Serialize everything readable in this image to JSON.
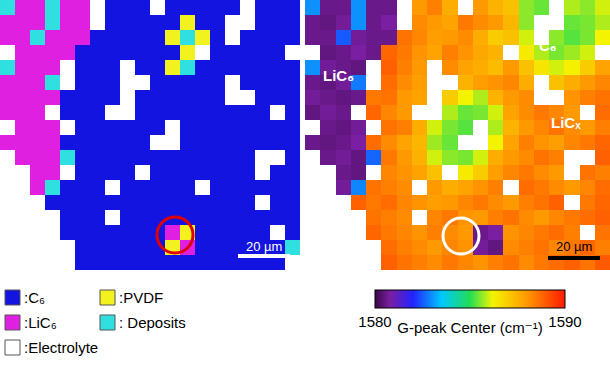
{
  "chart_data": [
    {
      "type": "heatmap",
      "tick_labels": false,
      "scale_bar": "20 µm",
      "series": [
        {
          "name": ":C₆",
          "color": "#1414e0"
        },
        {
          "name": ":PVDF",
          "color": "#f2f21e"
        },
        {
          "name": ":LiC₆",
          "color": "#e020e0"
        },
        {
          "name": ": Deposits",
          "color": "#30e0e0"
        },
        {
          "name": ":Electrolyte",
          "color": "#ffffff"
        }
      ],
      "cells": [
        [
          3,
          2,
          2,
          3,
          2,
          2,
          4,
          0,
          0,
          0,
          4,
          0,
          0,
          0,
          0,
          0,
          4,
          0,
          0,
          0
        ],
        [
          2,
          2,
          2,
          3,
          2,
          2,
          4,
          0,
          0,
          0,
          0,
          0,
          1,
          0,
          0,
          4,
          4,
          0,
          0,
          0
        ],
        [
          2,
          2,
          3,
          2,
          2,
          2,
          0,
          0,
          0,
          0,
          0,
          1,
          3,
          1,
          0,
          4,
          0,
          0,
          0,
          0
        ],
        [
          4,
          2,
          2,
          2,
          2,
          0,
          0,
          0,
          0,
          0,
          0,
          0,
          1,
          4,
          0,
          0,
          0,
          0,
          0,
          4
        ],
        [
          3,
          2,
          2,
          2,
          4,
          0,
          0,
          0,
          4,
          0,
          0,
          1,
          3,
          0,
          0,
          0,
          0,
          0,
          0,
          0
        ],
        [
          2,
          2,
          2,
          3,
          4,
          0,
          0,
          0,
          4,
          4,
          0,
          0,
          0,
          0,
          0,
          4,
          0,
          0,
          0,
          0
        ],
        [
          2,
          2,
          2,
          2,
          0,
          0,
          0,
          0,
          4,
          0,
          0,
          0,
          0,
          0,
          0,
          4,
          4,
          0,
          0,
          0
        ],
        [
          2,
          2,
          2,
          4,
          0,
          0,
          0,
          4,
          4,
          0,
          0,
          0,
          0,
          0,
          0,
          0,
          0,
          0,
          4,
          0
        ],
        [
          4,
          2,
          2,
          2,
          4,
          0,
          0,
          0,
          0,
          0,
          0,
          4,
          0,
          0,
          0,
          0,
          0,
          0,
          0,
          0
        ],
        [
          2,
          2,
          2,
          2,
          0,
          0,
          0,
          0,
          0,
          0,
          4,
          4,
          0,
          0,
          0,
          0,
          0,
          0,
          0,
          0
        ],
        [
          4,
          2,
          2,
          2,
          3,
          0,
          0,
          0,
          0,
          0,
          0,
          0,
          0,
          0,
          0,
          0,
          0,
          4,
          4,
          0
        ],
        [
          4,
          4,
          2,
          2,
          4,
          0,
          0,
          0,
          0,
          4,
          0,
          0,
          0,
          0,
          0,
          0,
          0,
          4,
          0,
          0
        ],
        [
          4,
          4,
          2,
          3,
          0,
          0,
          0,
          4,
          0,
          0,
          0,
          0,
          0,
          4,
          0,
          0,
          0,
          0,
          0,
          0
        ],
        [
          4,
          4,
          4,
          0,
          0,
          0,
          0,
          0,
          0,
          0,
          0,
          0,
          0,
          0,
          0,
          0,
          0,
          4,
          0,
          0
        ],
        [
          4,
          4,
          4,
          4,
          0,
          0,
          0,
          4,
          0,
          0,
          0,
          0,
          0,
          0,
          0,
          0,
          0,
          0,
          0,
          0
        ],
        [
          4,
          4,
          4,
          4,
          0,
          0,
          0,
          0,
          0,
          0,
          0,
          2,
          1,
          0,
          0,
          0,
          0,
          0,
          4,
          0
        ],
        [
          4,
          4,
          4,
          4,
          4,
          0,
          0,
          0,
          0,
          0,
          0,
          1,
          2,
          0,
          0,
          0,
          0,
          0,
          0,
          3
        ],
        [
          4,
          4,
          4,
          4,
          4,
          0,
          0,
          0,
          0,
          0,
          0,
          0,
          0,
          0,
          0,
          0,
          0,
          0,
          0,
          4
        ]
      ]
    },
    {
      "type": "heatmap",
      "tick_labels": false,
      "scale_bar": "20 µm",
      "annotations": [
        "LiC₆",
        "C₆",
        "LiCₓ"
      ],
      "zlim": [
        1580,
        1590
      ],
      "zticks": [
        1580,
        1590
      ],
      "colorbar_title": "G-peak Center (cm⁻¹)",
      "cells": [
        [
          1583,
          1580.6,
          1580.6,
          1583,
          1580.6,
          1580.6,
          null,
          1588,
          1588.4,
          1587.6,
          null,
          1588,
          1587.5,
          1587.2,
          1585.6,
          1585.4,
          null,
          1585.8,
          1585.6,
          1586
        ],
        [
          1580.6,
          1580.5,
          1580.7,
          1583,
          1580.6,
          1580.8,
          null,
          1588.2,
          1588,
          1587.8,
          1588.5,
          1588.2,
          1588,
          1587.4,
          1585.6,
          null,
          null,
          1585.4,
          1585.5,
          1585.8
        ],
        [
          1580.6,
          1580.6,
          1582.5,
          1580.7,
          1580.6,
          1580.6,
          1588.6,
          1588.3,
          1587.9,
          1588,
          1588.2,
          1587.6,
          1587,
          1587.2,
          1586,
          null,
          1585.6,
          1585.3,
          1585.5,
          1586.2
        ],
        [
          null,
          1580.5,
          1580.6,
          1580.8,
          1580.6,
          1588.8,
          1588.5,
          1588.1,
          1587.8,
          1588.4,
          1588.1,
          1587.7,
          1587.5,
          null,
          1586.4,
          1585.8,
          1585.5,
          1585.7,
          1586,
          null
        ],
        [
          1583,
          1580.7,
          1580.6,
          1580.5,
          null,
          1588.9,
          1588.4,
          1588,
          null,
          1588.2,
          1587.8,
          1587.6,
          1587.3,
          1588,
          1587.2,
          1586.5,
          1586,
          1586.3,
          1587,
          1587.8
        ],
        [
          1580.6,
          1580.5,
          1580.7,
          1582.8,
          null,
          1588.7,
          1588.2,
          1587.9,
          null,
          null,
          1587.5,
          1587.9,
          1588.1,
          1588.3,
          1587.6,
          null,
          1587.2,
          1587.6,
          1588,
          1588.3
        ],
        [
          1580.7,
          1580.6,
          1580.5,
          1580.6,
          1588.5,
          1588.6,
          1588,
          1587.8,
          null,
          1587,
          1586.2,
          1585.8,
          1587.5,
          1588,
          1588.2,
          null,
          null,
          1588.1,
          1588.4,
          1588.6
        ],
        [
          1580.5,
          1580.7,
          1580.6,
          null,
          1588.8,
          1588.3,
          1588,
          null,
          null,
          1585.8,
          1585.4,
          1585.5,
          1586,
          1587.8,
          1588.2,
          1588.5,
          1588.3,
          1588,
          null,
          1588.7
        ],
        [
          null,
          1580.6,
          1580.5,
          1580.7,
          null,
          1588.6,
          1588.4,
          1587.6,
          1586,
          1585.5,
          1585.3,
          null,
          1585.8,
          1587.5,
          1588,
          1588.3,
          1588.6,
          1588.2,
          1588,
          1588.4
        ],
        [
          1580.6,
          1580.5,
          1580.6,
          1580.8,
          1588.7,
          1588.2,
          1587.8,
          1587.4,
          1585.7,
          1585.4,
          null,
          null,
          1586.2,
          1587.8,
          1588.4,
          1588.1,
          1587.9,
          1588.3,
          1588.5,
          1588.8
        ],
        [
          null,
          1580.6,
          1580.7,
          1580.5,
          1582.6,
          1588.5,
          1588,
          1587.5,
          1586,
          1585.6,
          1585.5,
          1586,
          1587.6,
          1588,
          1588.2,
          1588.6,
          1588.4,
          null,
          null,
          1588.9
        ],
        [
          null,
          null,
          1580.6,
          1580.5,
          null,
          1588.3,
          1588.1,
          1587.8,
          1587.2,
          null,
          1586.4,
          1587,
          1587.9,
          1588.3,
          1588.5,
          1588.2,
          1588,
          null,
          1588.6,
          1588.4
        ],
        [
          null,
          null,
          1580.7,
          1582.9,
          1588.6,
          1588.4,
          1588.2,
          null,
          1588,
          1587.6,
          1587.8,
          1588.1,
          1588.4,
          null,
          1588.7,
          1588.5,
          1588.2,
          1588,
          1588.3,
          1588.7
        ],
        [
          null,
          null,
          null,
          1588.9,
          1588.5,
          1588.7,
          1588.3,
          1588.1,
          1587.9,
          1588,
          1588.3,
          1588.5,
          1588.2,
          1588,
          1588.4,
          1588.6,
          1588.9,
          null,
          1588.5,
          1588.8
        ],
        [
          null,
          null,
          null,
          null,
          1588.6,
          1588.4,
          1588.2,
          null,
          1588.3,
          1588.5,
          1588.1,
          1588,
          1588.4,
          1588.6,
          1588.2,
          1588,
          1588.3,
          1588.5,
          1588.7,
          1588.9
        ],
        [
          null,
          null,
          null,
          null,
          1588.8,
          1588.5,
          1588.3,
          1588.1,
          1588.4,
          1588.2,
          1588,
          1580.6,
          1580.8,
          1588.1,
          1588.3,
          1588.5,
          1588.7,
          1588.4,
          null,
          1588.6
        ],
        [
          null,
          null,
          null,
          null,
          null,
          1588.7,
          1588.4,
          1588.2,
          1588,
          1588.3,
          1588.1,
          1580.7,
          1580.5,
          1588.2,
          1588.4,
          1588.6,
          1588.3,
          1588.5,
          1588.8,
          1588.4
        ],
        [
          null,
          null,
          null,
          null,
          null,
          1588.9,
          1588.6,
          1588.4,
          1588.2,
          1588.5,
          1588.3,
          1588.1,
          1588.4,
          1588.6,
          1588.2,
          1588.5,
          1588.7,
          1588.9,
          1588.6,
          1589
        ]
      ]
    }
  ]
}
